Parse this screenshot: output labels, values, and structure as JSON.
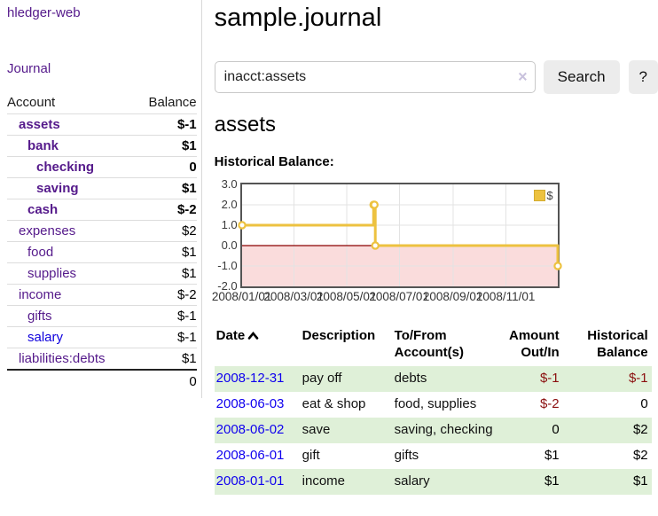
{
  "sidebar": {
    "brand": "hledger-web",
    "nav_journal": "Journal",
    "col_account": "Account",
    "col_balance": "Balance",
    "accounts": [
      {
        "name": "assets",
        "depth": 1,
        "balance": "$-1",
        "bold": true,
        "neg": "strong",
        "link": "purple"
      },
      {
        "name": "bank",
        "depth": 2,
        "balance": "$1",
        "bold": true,
        "neg": "none",
        "link": "purple"
      },
      {
        "name": "checking",
        "depth": 3,
        "balance": "0",
        "bold": true,
        "neg": "none",
        "link": "purple"
      },
      {
        "name": "saving",
        "depth": 3,
        "balance": "$1",
        "bold": true,
        "neg": "none",
        "link": "purple"
      },
      {
        "name": "cash",
        "depth": 2,
        "balance": "$-2",
        "bold": true,
        "neg": "strong",
        "link": "purple"
      },
      {
        "name": "expenses",
        "depth": 1,
        "balance": "$2",
        "bold": false,
        "neg": "none",
        "link": "purple"
      },
      {
        "name": "food",
        "depth": 2,
        "balance": "$1",
        "bold": false,
        "neg": "none",
        "link": "purple"
      },
      {
        "name": "supplies",
        "depth": 2,
        "balance": "$1",
        "bold": false,
        "neg": "none",
        "link": "purple"
      },
      {
        "name": "income",
        "depth": 1,
        "balance": "$-2",
        "bold": false,
        "neg": "muted",
        "link": "purple"
      },
      {
        "name": "gifts",
        "depth": 2,
        "balance": "$-1",
        "bold": false,
        "neg": "muted",
        "link": "purple"
      },
      {
        "name": "salary",
        "depth": 2,
        "balance": "$-1",
        "bold": false,
        "neg": "muted",
        "link": "blue"
      },
      {
        "name": "liabilities:debts",
        "depth": 1,
        "balance": "$1",
        "bold": false,
        "neg": "none",
        "link": "purple"
      }
    ],
    "total": "0"
  },
  "header": {
    "title": "sample.journal"
  },
  "search": {
    "value": "inacct:assets",
    "clear_icon": "×",
    "button_label": "Search",
    "help_label": "?"
  },
  "main": {
    "heading": "assets",
    "chart_label": "Historical Balance:"
  },
  "chart_data": {
    "type": "line",
    "line_style": "step",
    "title": "Historical Balance",
    "legend": {
      "label": "$",
      "position": "top-right"
    },
    "xlim_days": [
      0,
      365
    ],
    "ylim": [
      -2,
      3
    ],
    "grid": true,
    "y_ticks": [
      {
        "label": "3.0",
        "value": 3
      },
      {
        "label": "2.0",
        "value": 2
      },
      {
        "label": "1.0",
        "value": 1
      },
      {
        "label": "0.0",
        "value": 0
      },
      {
        "label": "-1.0",
        "value": -1
      },
      {
        "label": "-2.0",
        "value": -2
      }
    ],
    "x_ticks": [
      {
        "label": "2008/01/01",
        "day": 0
      },
      {
        "label": "2008/03/01",
        "day": 60
      },
      {
        "label": "2008/05/01",
        "day": 121
      },
      {
        "label": "2008/07/01",
        "day": 182
      },
      {
        "label": "2008/09/01",
        "day": 244
      },
      {
        "label": "2008/11/01",
        "day": 305
      }
    ],
    "series": [
      {
        "name": "$",
        "color": "#edc240",
        "points": [
          {
            "date": "2008-01-01",
            "day": 0,
            "value": 1
          },
          {
            "date": "2008-06-01",
            "day": 152,
            "value": 2
          },
          {
            "date": "2008-06-02",
            "day": 153,
            "value": 2
          },
          {
            "date": "2008-06-03",
            "day": 154,
            "value": 0
          },
          {
            "date": "2008-12-31",
            "day": 365,
            "value": -1
          }
        ]
      }
    ],
    "negative_region_color": "#fadcdc",
    "zero_line_color": "#8b0000",
    "gridline_color": "#e3e3e3",
    "border_color": "#545454"
  },
  "register": {
    "headers": {
      "date": "Date",
      "sort_icon": "chevron-up",
      "description": "Description",
      "accounts": "To/From Account(s)",
      "amount": "Amount Out/In",
      "balance": "Historical Balance"
    },
    "rows": [
      {
        "date": "2008-12-31",
        "description": "pay off",
        "accounts": "debts",
        "amount": "$-1",
        "amount_negative": true,
        "balance": "$-1",
        "balance_negative": true
      },
      {
        "date": "2008-06-03",
        "description": "eat & shop",
        "accounts": "food, supplies",
        "amount": "$-2",
        "amount_negative": true,
        "balance": "0",
        "balance_negative": false
      },
      {
        "date": "2008-06-02",
        "description": "save",
        "accounts": "saving, checking",
        "amount": "0",
        "amount_negative": false,
        "balance": "$2",
        "balance_negative": false
      },
      {
        "date": "2008-06-01",
        "description": "gift",
        "accounts": "gifts",
        "amount": "$1",
        "amount_negative": false,
        "balance": "$2",
        "balance_negative": false
      },
      {
        "date": "2008-01-01",
        "description": "income",
        "accounts": "salary",
        "amount": "$1",
        "amount_negative": false,
        "balance": "$1",
        "balance_negative": false
      }
    ]
  },
  "colors": {
    "link_purple": "#551a8b",
    "link_blue": "#0f00dd",
    "negative_strong": "#8b0f0f",
    "negative_muted": "#b36b6b",
    "row_green": "#dff0d8",
    "chart_line": "#edc240",
    "button_bg": "#ececec"
  }
}
